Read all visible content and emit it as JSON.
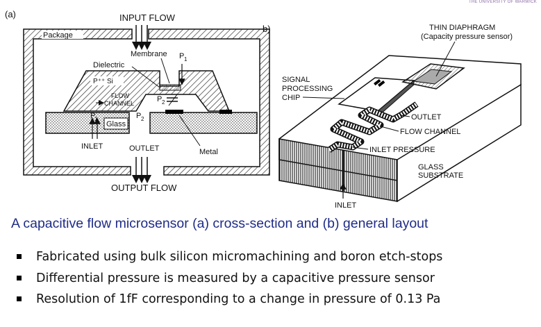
{
  "header": {
    "brand": "THE UNIVERSITY OF WARWICK"
  },
  "figure_a": {
    "panel_label": "(a)",
    "labels": {
      "input_flow": "INPUT FLOW",
      "package": "Package",
      "membrane": "Membrane",
      "p1": "P",
      "p1_sub": "1",
      "dielectric": "Dielectric",
      "p_si": "P⁺⁺ Si",
      "flow_channel_1": "FLOW",
      "flow_channel_2": "CHANNEL",
      "p2": "P",
      "p2_sub": "2",
      "p1_left": "P",
      "p1_left_sub": "1",
      "glass": "Glass",
      "p2_right": "P",
      "p2_right_sub": "2",
      "inlet": "INLET",
      "outlet": "OUTLET",
      "metal": "Metal",
      "output_flow": "OUTPUT FLOW"
    }
  },
  "figure_b": {
    "panel_label": "b)",
    "labels": {
      "thin_diaphragm": "THIN DIAPHRAGM",
      "capacity_sensor": "(Capacity pressure sensor)",
      "signal": "SIGNAL",
      "processing": "PROCESSING",
      "chip": "CHIP",
      "outlet": "OUTLET",
      "flow_channel": "FLOW CHANNEL",
      "inlet_pressure": "INLET PRESSURE",
      "glass": "GLASS",
      "substrate": "SUBSTRATE",
      "inlet": "INLET"
    }
  },
  "caption": "A capacitive flow microsensor (a) cross-section and (b) general layout",
  "bullets": [
    "Fabricated using bulk silicon micromachining and boron etch-stops",
    "Differential pressure is measured by a capacitive pressure sensor",
    "Resolution of 1fF corresponding to a change in pressure of 0.13 Pa"
  ]
}
